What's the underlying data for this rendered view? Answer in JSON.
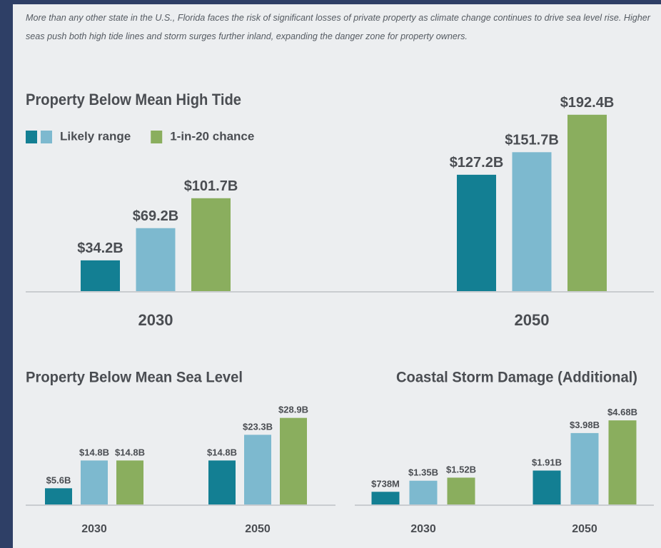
{
  "intro": "More than any other state in the U.S., Florida faces the risk of significant losses of private property as climate change continues to drive sea level rise. Higher seas push both high tide lines and storm surges further inland, expanding the danger zone for property owners.",
  "chart_data": [
    {
      "type": "bar",
      "title": "Property Below Mean High Tide",
      "categories": [
        "2030",
        "2050"
      ],
      "ylim": [
        0,
        200
      ],
      "series": [
        {
          "color": "#137f93",
          "values": [
            34.2,
            127.2
          ],
          "value_labels": [
            "$34.2B",
            "$127.2B"
          ]
        },
        {
          "name": "Likely range",
          "color": "#7db9cf",
          "values": [
            69.2,
            151.7
          ],
          "value_labels": [
            "$69.2B",
            "$151.7B"
          ]
        },
        {
          "name": "1-in-20 chance",
          "color": "#8aae5e",
          "values": [
            101.7,
            192.4
          ],
          "value_labels": [
            "$101.7B",
            "$192.4B"
          ]
        }
      ]
    },
    {
      "type": "bar",
      "title": "Property Below Mean Sea Level",
      "categories": [
        "2030",
        "2050"
      ],
      "ylim": [
        0,
        30
      ],
      "series": [
        {
          "color": "#137f93",
          "values": [
            5.6,
            14.8
          ],
          "value_labels": [
            "$5.6B",
            "$14.8B"
          ]
        },
        {
          "color": "#7db9cf",
          "values": [
            14.8,
            23.3
          ],
          "value_labels": [
            "$14.8B",
            "$23.3B"
          ]
        },
        {
          "color": "#8aae5e",
          "values": [
            14.8,
            28.9
          ],
          "value_labels": [
            "$14.8B",
            "$28.9B"
          ]
        }
      ]
    },
    {
      "type": "bar",
      "title": "Coastal Storm Damage (Additional)",
      "categories": [
        "2030",
        "2050"
      ],
      "ylim": [
        0,
        5
      ],
      "series": [
        {
          "color": "#137f93",
          "values": [
            0.738,
            1.91
          ],
          "value_labels": [
            "$738M",
            "$1.91B"
          ]
        },
        {
          "color": "#7db9cf",
          "values": [
            1.35,
            3.98
          ],
          "value_labels": [
            "$1.35B",
            "$3.98B"
          ]
        },
        {
          "color": "#8aae5e",
          "values": [
            1.52,
            4.68
          ],
          "value_labels": [
            "$1.52B",
            "$4.68B"
          ]
        }
      ]
    }
  ]
}
